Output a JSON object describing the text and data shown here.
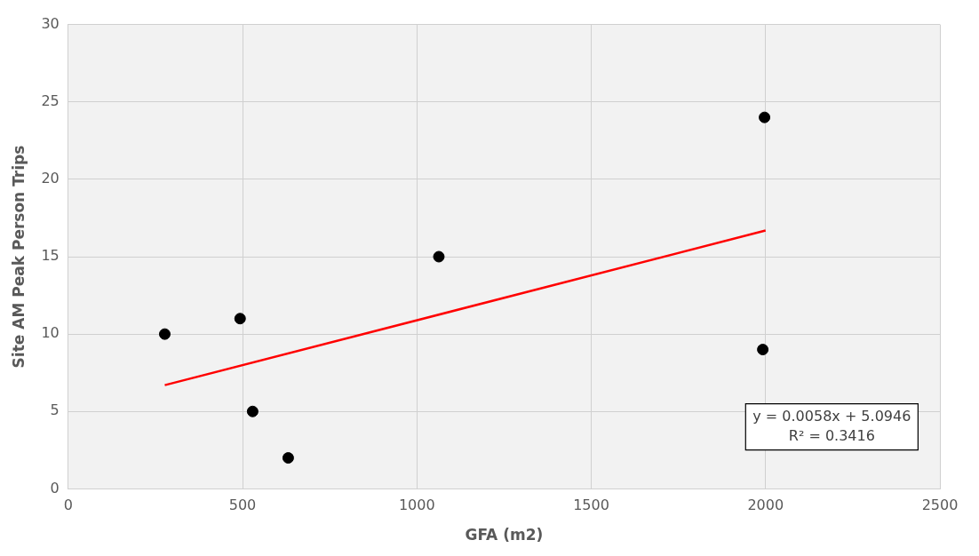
{
  "chart_data": {
    "type": "scatter",
    "xlabel": "GFA (m2)",
    "ylabel": "Site AM Peak Person Trips",
    "xlim": [
      0,
      2500
    ],
    "xticks": [
      0,
      500,
      1000,
      1500,
      2000,
      2500
    ],
    "ylim": [
      0,
      30
    ],
    "yticks": [
      0,
      5,
      10,
      15,
      20,
      25,
      30
    ],
    "grid": true,
    "legend": false,
    "marker": "circle",
    "series": [
      {
        "color": "#000000",
        "x": [
          277,
          493,
          529,
          631,
          1063,
          1997,
          1992
        ],
        "values": [
          10,
          11,
          5,
          2,
          15,
          24,
          9
        ]
      },
      {
        "type": "line",
        "color": "#ff0000",
        "x": [
          277,
          2000
        ],
        "values": [
          6.7,
          16.69
        ],
        "marker": "none",
        "line_style": "solid"
      }
    ],
    "annotations": [
      "y = 0.0058x + 5.0946",
      "R² = 0.3416"
    ]
  }
}
